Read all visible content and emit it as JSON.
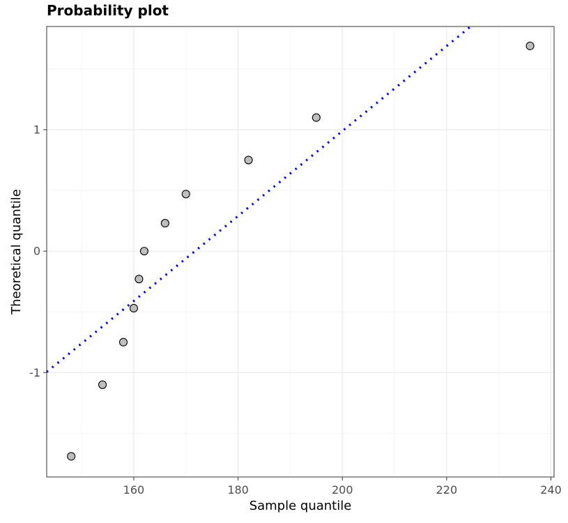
{
  "chart_data": {
    "type": "scatter",
    "title": "Probability plot",
    "xlabel": "Sample quantile",
    "ylabel": "Theoretical quantile",
    "xlim": [
      143.3,
      240.6
    ],
    "ylim": [
      -1.86,
      1.85
    ],
    "x_ticks": [
      160,
      180,
      200,
      220,
      240
    ],
    "x_tick_labels": [
      "160",
      "180",
      "200",
      "220",
      "240"
    ],
    "y_ticks": [
      -1,
      0,
      1
    ],
    "y_tick_labels": [
      "-1",
      "0",
      "1"
    ],
    "grid": true,
    "legend": "none",
    "points": [
      {
        "x": 148,
        "y": -1.69
      },
      {
        "x": 154,
        "y": -1.1
      },
      {
        "x": 158,
        "y": -0.75
      },
      {
        "x": 160,
        "y": -0.47
      },
      {
        "x": 161,
        "y": -0.23
      },
      {
        "x": 162,
        "y": 0.0
      },
      {
        "x": 166,
        "y": 0.23
      },
      {
        "x": 170,
        "y": 0.47
      },
      {
        "x": 182,
        "y": 0.75
      },
      {
        "x": 195,
        "y": 1.1
      },
      {
        "x": 236,
        "y": 1.69
      }
    ],
    "reference_line": {
      "style": "dotted",
      "points": [
        [
          143.3,
          -0.995
        ],
        [
          224.6,
          1.85
        ]
      ]
    },
    "colors": {
      "point_fill": "#bebebe",
      "point_stroke": "#000000",
      "reference_line": "#0000ff",
      "grid_major": "#ebebeb",
      "grid_minor": "#f5f5f5",
      "panel_border": "#333333"
    }
  }
}
